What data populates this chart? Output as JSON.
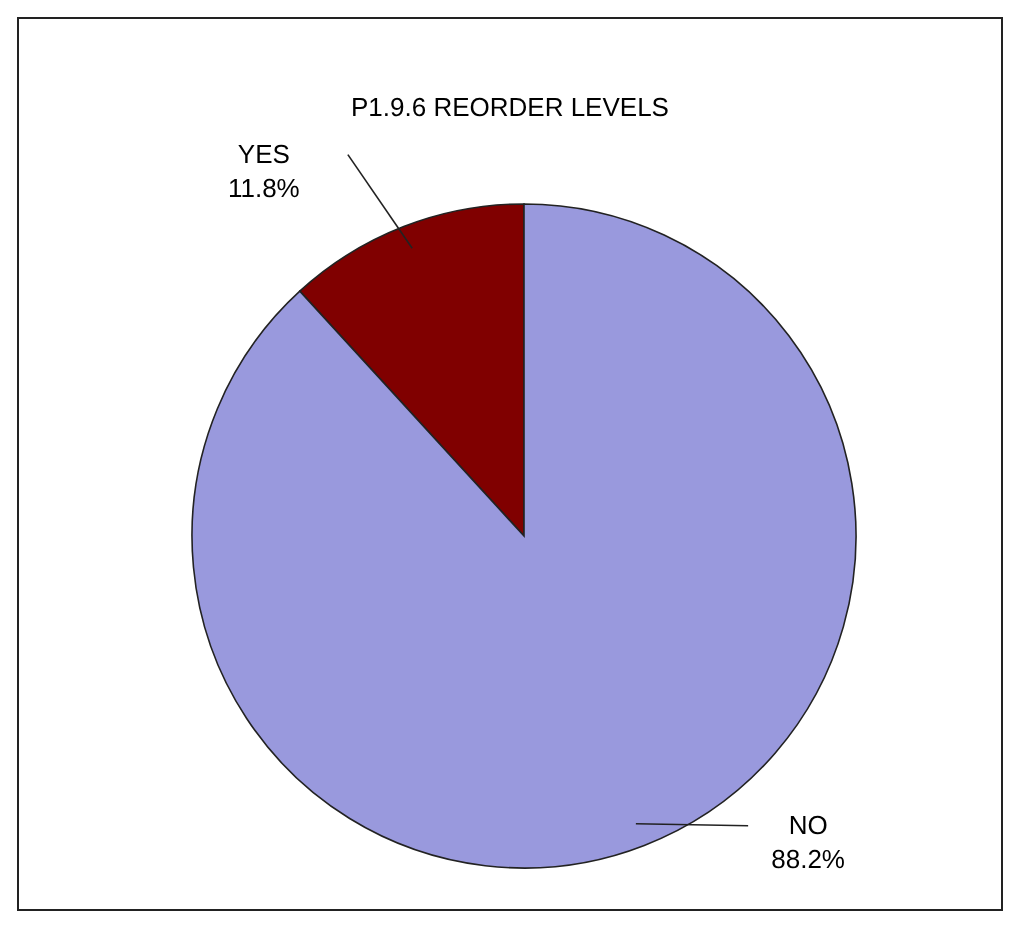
{
  "chart_data": {
    "type": "pie",
    "title": "P1.9.6 REORDER LEVELS",
    "categories": [
      "YES",
      "NO"
    ],
    "values": [
      11.8,
      88.2
    ],
    "colors": [
      "#800000",
      "#9999dd"
    ],
    "value_labels": [
      "11.8%",
      "88.2%"
    ]
  }
}
